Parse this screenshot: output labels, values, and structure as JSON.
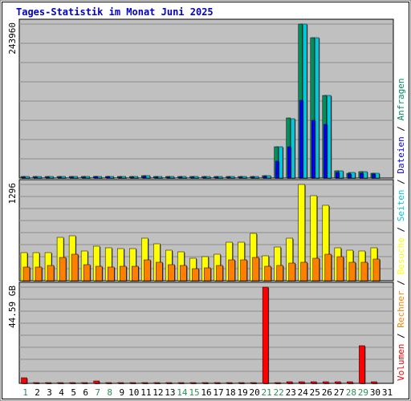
{
  "chart_data": {
    "type": "bar",
    "title": "Tages-Statistik im Monat Juni 2025",
    "categories": [
      "1",
      "2",
      "3",
      "4",
      "5",
      "6",
      "7",
      "8",
      "9",
      "10",
      "11",
      "12",
      "13",
      "14",
      "15",
      "16",
      "17",
      "18",
      "19",
      "20",
      "21",
      "22",
      "23",
      "24",
      "25",
      "26",
      "27",
      "28",
      "29",
      "30",
      "31"
    ],
    "weekend_days": [
      "1",
      "7",
      "8",
      "14",
      "15",
      "21",
      "22",
      "28",
      "29"
    ],
    "colors": {
      "title": "#0000cc",
      "background": "#c0c0c0",
      "frame": "#ffffff",
      "weekday_label": "#000000",
      "weekend_label": "#2e8b57",
      "requests": "#008f5a",
      "files": "#0000ff",
      "pages": "#00c8dc",
      "visits": "#ffff00",
      "sites": "#ff8000",
      "volume": "#ff0000"
    },
    "panels": [
      {
        "max_label": "243960",
        "ylim": [
          0,
          243960
        ],
        "series": [
          {
            "name": "Anfragen",
            "values": [
              2400,
              2200,
              2200,
              2300,
              2300,
              2300,
              2400,
              2700,
              2300,
              2300,
              3600,
              2100,
              2100,
              2100,
              2100,
              2100,
              2100,
              2100,
              2100,
              2100,
              3800,
              50000,
              95000,
              243960,
              222000,
              131000,
              12000,
              8000,
              10000,
              8000,
              0
            ]
          },
          {
            "name": "Dateien",
            "values": [
              1900,
              1800,
              1800,
              1900,
              1900,
              1900,
              2000,
              2200,
              1900,
              1900,
              3000,
              1700,
              1700,
              1700,
              1700,
              1700,
              1700,
              1700,
              1700,
              1700,
              3100,
              27000,
              50000,
              123000,
              92000,
              85000,
              9000,
              6500,
              8000,
              6500,
              0
            ]
          },
          {
            "name": "Seiten",
            "values": [
              2500,
              2300,
              2300,
              2400,
              2400,
              2400,
              2500,
              2800,
              2400,
              2400,
              3700,
              2200,
              2200,
              2200,
              2200,
              2200,
              2200,
              2200,
              2200,
              2200,
              3900,
              50000,
              94000,
              243960,
              222000,
              131000,
              12000,
              8300,
              10000,
              8000,
              0
            ]
          }
        ]
      },
      {
        "max_label": "1296",
        "ylim": [
          0,
          1296
        ],
        "series": [
          {
            "name": "Besuche",
            "values": [
              380,
              380,
              380,
              580,
              600,
              400,
              460,
              440,
              430,
              430,
              570,
              500,
              410,
              390,
              300,
              320,
              360,
              520,
              520,
              640,
              330,
              450,
              570,
              1296,
              1150,
              1020,
              440,
              410,
              400,
              440,
              0
            ]
          },
          {
            "name": "Rechner",
            "values": [
              180,
              180,
              200,
              310,
              360,
              220,
              190,
              180,
              190,
              190,
              280,
              250,
              220,
              210,
              160,
              170,
              210,
              280,
              280,
              310,
              190,
              200,
              240,
              250,
              300,
              360,
              320,
              250,
              250,
              290,
              0
            ]
          }
        ]
      },
      {
        "max_label": "44.59 GB",
        "ylim": [
          0,
          44.59
        ],
        "series": [
          {
            "name": "Volumen",
            "values": [
              2.5,
              0.4,
              0.4,
              0.4,
              0.4,
              0.4,
              1.2,
              0.4,
              0.4,
              0.4,
              0.4,
              0.4,
              0.4,
              0.4,
              0.4,
              0.4,
              0.4,
              0.4,
              0.4,
              0.4,
              44.59,
              0.4,
              0.6,
              0.6,
              0.8,
              0.8,
              0.6,
              0.6,
              17.5,
              0.6,
              0
            ]
          }
        ]
      }
    ],
    "legend": [
      {
        "label": "Volumen",
        "color_key": "volume"
      },
      {
        "label": "Rechner",
        "color_key": "sites"
      },
      {
        "label": "Besuche",
        "color_key": "visits"
      },
      {
        "label": "Seiten",
        "color_key": "pages"
      },
      {
        "label": "Dateien",
        "color_key": "files"
      },
      {
        "label": "Anfragen",
        "color_key": "requests"
      }
    ],
    "legend_separator": "/"
  }
}
